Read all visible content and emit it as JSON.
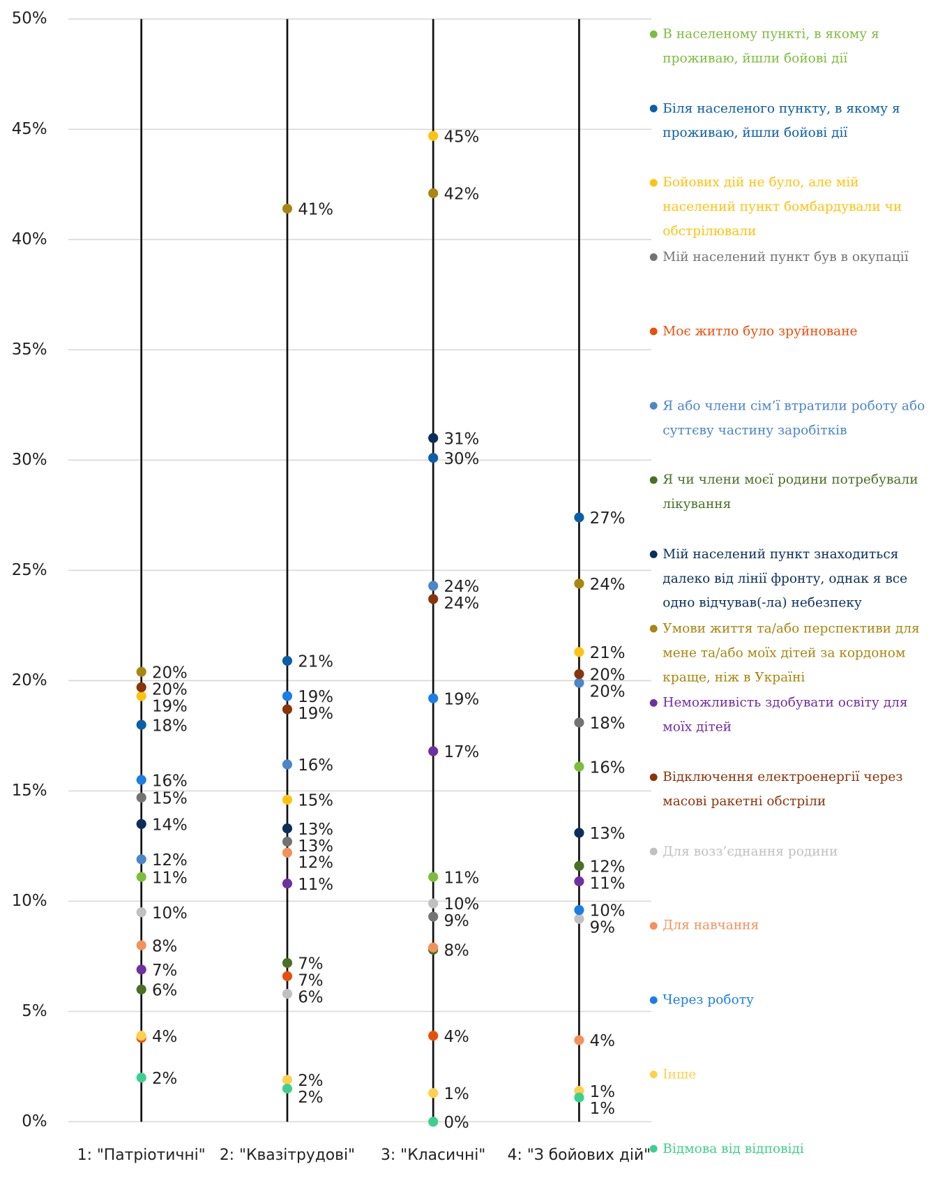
{
  "chart_data": {
    "type": "dot",
    "categories": [
      "1: \"Патріотичні\"",
      "2: \"Квазітрудові\"",
      "3: \"Класичні\"",
      "4: \"З бойових дій\""
    ],
    "ylim": [
      0,
      50
    ],
    "yticks": [
      {
        "value": 0,
        "label": "0%"
      },
      {
        "value": 5,
        "label": "5%"
      },
      {
        "value": 10,
        "label": "10%"
      },
      {
        "value": 15,
        "label": "15%"
      },
      {
        "value": 20,
        "label": "20%"
      },
      {
        "value": 25,
        "label": "25%"
      },
      {
        "value": 30,
        "label": "30%"
      },
      {
        "value": 35,
        "label": "35%"
      },
      {
        "value": 40,
        "label": "40%"
      },
      {
        "value": 45,
        "label": "45%"
      },
      {
        "value": 50,
        "label": "50%"
      }
    ],
    "grid": true,
    "legend": "right",
    "series": [
      {
        "name": "В населеному пункті, в якому я проживаю, йшли бойові дії",
        "color": "#7cbd3c",
        "values": [
          11.1,
          null,
          11.1,
          16.1
        ],
        "value_labels": [
          "11%",
          null,
          "11%",
          "16%"
        ]
      },
      {
        "name": "Біля населеного пункту, в якому я проживаю, йшли бойові дії",
        "color": "#0b5ea8",
        "values": [
          18.0,
          20.9,
          30.1,
          27.4
        ],
        "value_labels": [
          "18%",
          "21%",
          "30%",
          "27%"
        ]
      },
      {
        "name": "Бойових дій не було, але мій населений пункт бомбардували чи обстрілювали",
        "color": "#ffc20e",
        "values": [
          19.3,
          14.6,
          44.7,
          21.3
        ],
        "value_labels": [
          "19%",
          "15%",
          "45%",
          "21%"
        ]
      },
      {
        "name": "Мій населений пункт був в окупації",
        "color": "#737373",
        "values": [
          14.7,
          12.7,
          9.3,
          18.1
        ],
        "value_labels": [
          "15%",
          "13%",
          "9%",
          "18%"
        ]
      },
      {
        "name": "Моє житло було зруйноване",
        "color": "#e8500a",
        "values": [
          3.8,
          6.6,
          3.9,
          null
        ],
        "value_labels": [
          null,
          "7%",
          "4%",
          null
        ]
      },
      {
        "name": "Я або члени сім’ї втратили роботу або суттєву частину заробітків",
        "color": "#4a86c8",
        "values": [
          11.9,
          16.2,
          24.3,
          19.9
        ],
        "value_labels": [
          "12%",
          "16%",
          "24%",
          "20%"
        ]
      },
      {
        "name": "Я чи члени моєї родини потребували лікування",
        "color": "#4a7024",
        "values": [
          6.0,
          7.2,
          7.8,
          11.6
        ],
        "value_labels": [
          "6%",
          "7%",
          "8%",
          "12%"
        ]
      },
      {
        "name": "Мій населений пункт знаходиться далеко від лінії фронту, однак я все одно відчував(-ла) небезпеку",
        "color": "#0a2f5c",
        "values": [
          13.5,
          13.3,
          31.0,
          13.1
        ],
        "value_labels": [
          "14%",
          "13%",
          "31%",
          "13%"
        ]
      },
      {
        "name": "Умови життя та/або перспективи для мене та/або моїх дітей за кордоном краще, ніж в Україні",
        "color": "#a8860f",
        "values": [
          20.4,
          41.4,
          42.1,
          24.4
        ],
        "value_labels": [
          "20%",
          "41%",
          "42%",
          "24%"
        ]
      },
      {
        "name": "Неможливість здобувати освіту для моїх дітей",
        "color": "#7030a0",
        "values": [
          6.9,
          10.8,
          16.8,
          10.9
        ],
        "value_labels": [
          "7%",
          "11%",
          "17%",
          "11%"
        ]
      },
      {
        "name": "Відключення електроенергії через масові ракетні обстріли",
        "color": "#8b3409",
        "values": [
          19.7,
          18.7,
          23.7,
          20.3
        ],
        "value_labels": [
          "20%",
          "19%",
          "24%",
          "20%"
        ]
      },
      {
        "name": "Для возз’єднання родини",
        "color": "#c0c0c0",
        "values": [
          9.5,
          5.8,
          9.9,
          9.2
        ],
        "value_labels": [
          "10%",
          "6%",
          "10%",
          "9%"
        ]
      },
      {
        "name": "Для навчання",
        "color": "#f4915a",
        "values": [
          8.0,
          12.2,
          7.9,
          3.7
        ],
        "value_labels": [
          "8%",
          "12%",
          null,
          "4%"
        ]
      },
      {
        "name": "Через роботу",
        "color": "#1a7ee8",
        "values": [
          15.5,
          19.3,
          19.2,
          9.6
        ],
        "value_labels": [
          "16%",
          "19%",
          "19%",
          "10%"
        ]
      },
      {
        "name": "Інше",
        "color": "#ffd04a",
        "values": [
          3.9,
          1.9,
          1.3,
          1.4
        ],
        "value_labels": [
          "4%",
          "2%",
          "1%",
          "1%"
        ]
      },
      {
        "name": "Відмова від відповіді",
        "color": "#3ecf8e",
        "values": [
          2.0,
          1.5,
          0,
          1.1
        ],
        "value_labels": [
          "2%",
          "2%",
          "0%",
          "1%"
        ]
      }
    ]
  }
}
